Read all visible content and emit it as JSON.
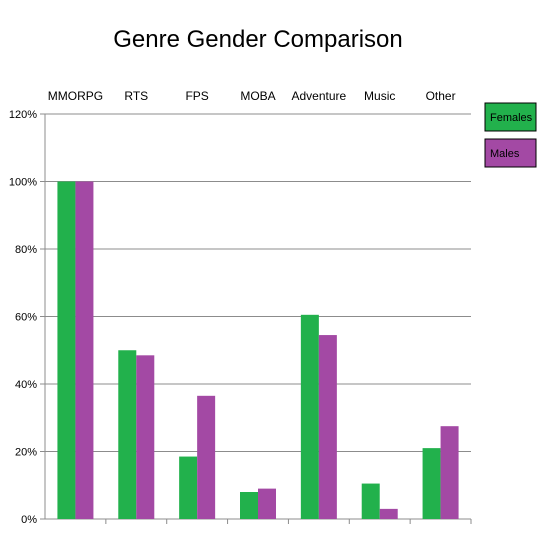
{
  "chart_data": {
    "type": "bar",
    "title": "Genre Gender Comparison",
    "xlabel": "",
    "ylabel": "",
    "categories": [
      "MMORPG",
      "RTS",
      "FPS",
      "MOBA",
      "Adventure",
      "Music",
      "Other"
    ],
    "series": [
      {
        "name": "Females",
        "color": "#22b14c",
        "values": [
          100,
          50,
          18.5,
          8,
          60.5,
          10.5,
          21
        ]
      },
      {
        "name": "Males",
        "color": "#a349a4",
        "values": [
          100,
          48.5,
          36.5,
          9,
          54.5,
          3,
          27.5
        ]
      }
    ],
    "ylim": [
      0,
      120
    ],
    "yticks": [
      "0%",
      "20%",
      "40%",
      "60%",
      "80%",
      "100%",
      "120%"
    ],
    "grid": true,
    "legend_position": "top-right",
    "category_label_position": "top"
  }
}
